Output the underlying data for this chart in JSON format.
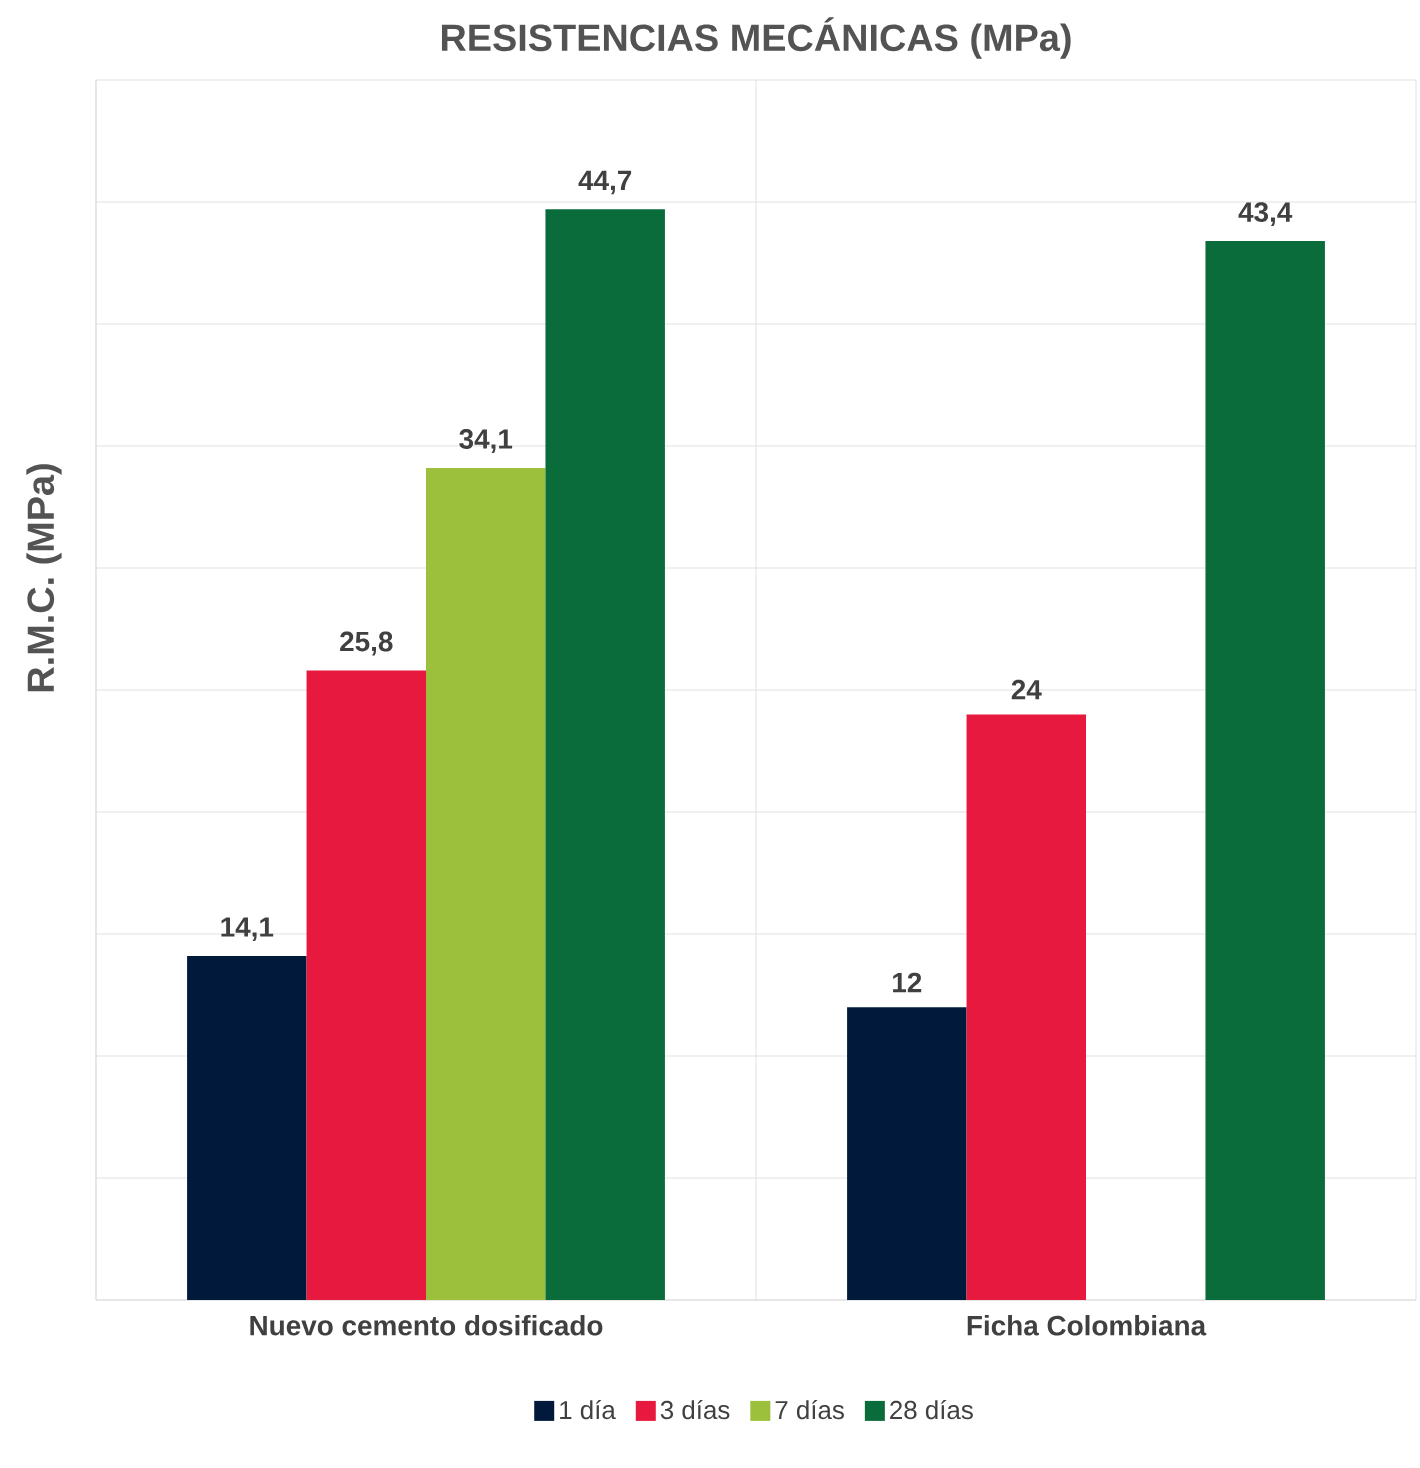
{
  "chart_data": {
    "type": "bar",
    "title": "RESISTENCIAS MECÁNICAS (MPa)",
    "ylabel": "R.M.C. (MPa)",
    "categories": [
      "Nuevo cemento dosificado",
      "Ficha Colombiana"
    ],
    "series": [
      {
        "name": "1 día",
        "color": "#011a3b",
        "values": [
          14.1,
          12
        ],
        "value_labels": [
          "14,1",
          "12"
        ]
      },
      {
        "name": "3 días",
        "color": "#e8193e",
        "values": [
          25.8,
          24
        ],
        "value_labels": [
          "25,8",
          "24"
        ]
      },
      {
        "name": "7 días",
        "color": "#9cc03c",
        "values": [
          34.1,
          null
        ],
        "value_labels": [
          "34,1",
          null
        ]
      },
      {
        "name": "28 días",
        "color": "#0a6b3b",
        "values": [
          44.7,
          43.4
        ],
        "value_labels": [
          "44,7",
          "43,4"
        ]
      }
    ],
    "ylim": [
      0,
      50
    ],
    "yticks": [
      {
        "value": 0,
        "label": null
      },
      {
        "value": 5,
        "label": null
      },
      {
        "value": 10,
        "label": null
      },
      {
        "value": 15,
        "label": null
      },
      {
        "value": 20,
        "label": null
      },
      {
        "value": 25,
        "label": null
      },
      {
        "value": 30,
        "label": null
      },
      {
        "value": 35,
        "label": null
      },
      {
        "value": 40,
        "label": null
      },
      {
        "value": 45,
        "label": null
      },
      {
        "value": 50,
        "label": null
      }
    ],
    "tick_labels": "x",
    "grid": true,
    "legend": "bottom"
  }
}
